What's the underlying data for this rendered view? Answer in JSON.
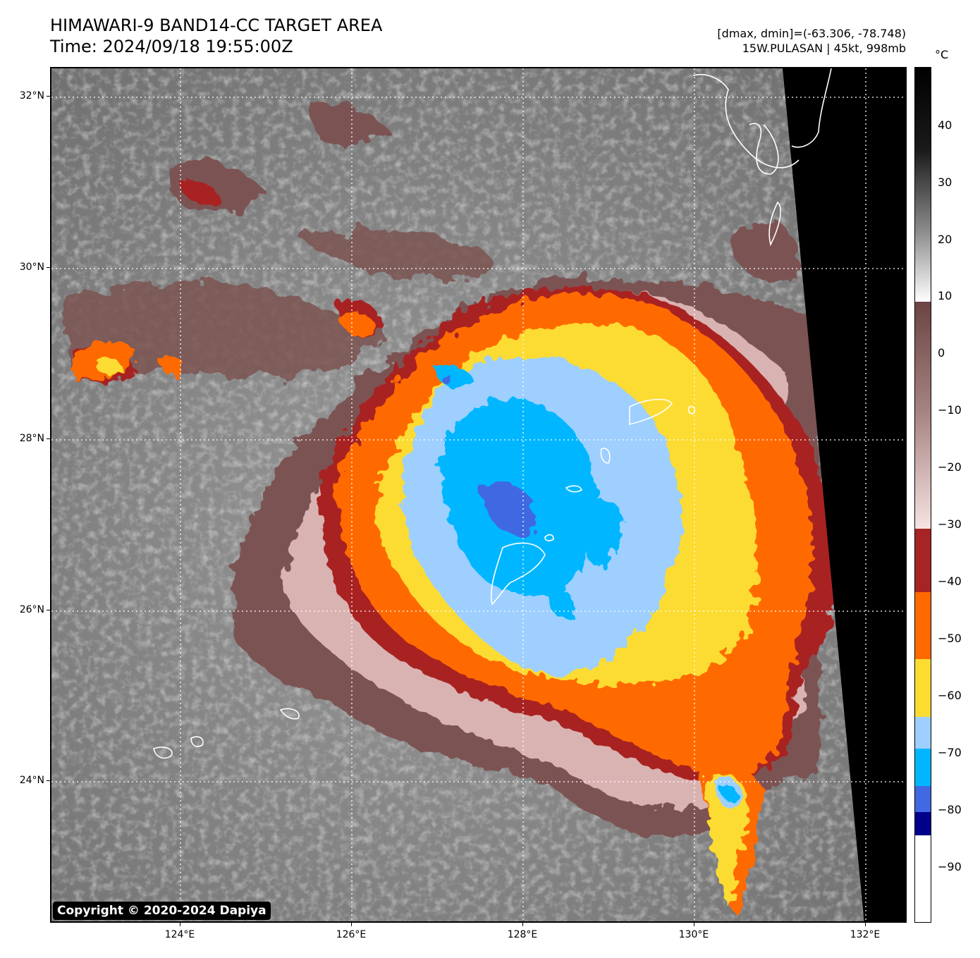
{
  "header": {
    "title": "HIMAWARI-9 BAND14-CC TARGET AREA",
    "time": "Time: 2024/09/18 19:55:00Z",
    "range": "[dmax, dmin]=(-63.306, -78.748)",
    "storm": "15W.PULASAN | 45kt, 998mb"
  },
  "map": {
    "lat_labels": [
      "32°N",
      "30°N",
      "28°N",
      "26°N",
      "24°N"
    ],
    "lon_labels": [
      "124°E",
      "126°E",
      "128°E",
      "130°E",
      "132°E"
    ],
    "copyright": "Copyright © 2020-2024 Dapiya"
  },
  "colorbar": {
    "unit": "°C",
    "labels": [
      "40",
      "30",
      "20",
      "10",
      "0",
      "−10",
      "−20",
      "−30",
      "−40",
      "−50",
      "−60",
      "−70",
      "−80",
      "−90"
    ],
    "colors": {
      "warm_black": "#000000",
      "gray": "#808080",
      "light_gray": "#e8e8e8",
      "brown": "#7b5352",
      "pink": "#f5dede",
      "dark_red": "#a82424",
      "orange": "#ff6a00",
      "yellow": "#fcdc30",
      "light_blue": "#9ecfff",
      "cyan": "#00b7ff",
      "royal_blue": "#4169e1",
      "navy": "#00008b",
      "white": "#ffffff"
    }
  }
}
